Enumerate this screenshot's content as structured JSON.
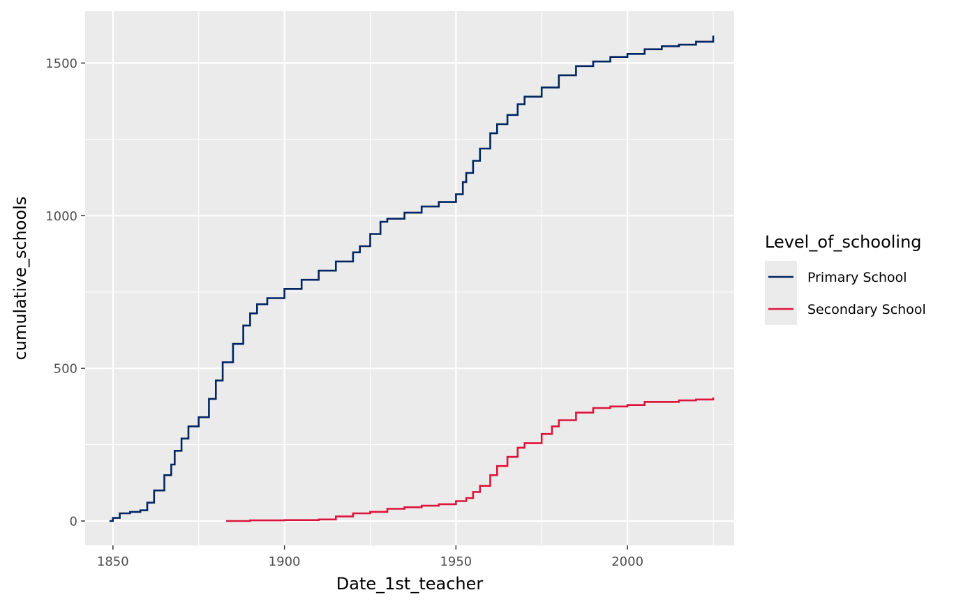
{
  "chart_data": {
    "type": "line",
    "title": "",
    "xlabel": "Date_1st_teacher",
    "ylabel": "cumulative_schools",
    "xlim": [
      1841.9,
      2031.1
    ],
    "ylim": [
      -80,
      1670
    ],
    "x_ticks": [
      1850,
      1900,
      1950,
      2000
    ],
    "x_tick_labels": [
      "1850",
      "1900",
      "1950",
      "2000"
    ],
    "y_ticks": [
      0,
      500,
      1000,
      1500
    ],
    "y_tick_labels": [
      "0",
      "500",
      "1000",
      "1500"
    ],
    "grid": true,
    "legend": {
      "title": "Level_of_schooling",
      "placement": "right"
    },
    "series": [
      {
        "name": "Primary School",
        "color": "#002561",
        "x": [
          1849,
          1850,
          1852,
          1855,
          1858,
          1860,
          1862,
          1865,
          1867,
          1868,
          1870,
          1872,
          1875,
          1878,
          1880,
          1882,
          1885,
          1888,
          1890,
          1892,
          1895,
          1900,
          1905,
          1910,
          1915,
          1920,
          1922,
          1925,
          1928,
          1930,
          1935,
          1940,
          1945,
          1950,
          1952,
          1953,
          1955,
          1957,
          1960,
          1962,
          1965,
          1968,
          1970,
          1975,
          1980,
          1985,
          1990,
          1995,
          2000,
          2005,
          2010,
          2015,
          2020,
          2025
        ],
        "y": [
          0,
          10,
          25,
          30,
          35,
          60,
          100,
          150,
          185,
          230,
          270,
          310,
          340,
          400,
          460,
          520,
          580,
          640,
          680,
          710,
          730,
          760,
          790,
          820,
          850,
          880,
          900,
          940,
          980,
          990,
          1010,
          1030,
          1045,
          1070,
          1110,
          1140,
          1180,
          1220,
          1270,
          1300,
          1330,
          1365,
          1390,
          1420,
          1460,
          1490,
          1505,
          1520,
          1530,
          1545,
          1555,
          1560,
          1570,
          1590
        ]
      },
      {
        "name": "Secondary School",
        "color": "#dc143c",
        "x": [
          1883,
          1890,
          1900,
          1905,
          1910,
          1915,
          1920,
          1925,
          1930,
          1935,
          1940,
          1945,
          1950,
          1953,
          1955,
          1957,
          1960,
          1962,
          1965,
          1968,
          1970,
          1975,
          1978,
          1980,
          1985,
          1990,
          1995,
          2000,
          2005,
          2010,
          2015,
          2020,
          2025
        ],
        "y": [
          0,
          2,
          3,
          3,
          5,
          15,
          25,
          30,
          40,
          45,
          50,
          55,
          65,
          75,
          95,
          115,
          150,
          180,
          210,
          240,
          255,
          285,
          310,
          330,
          355,
          370,
          375,
          380,
          390,
          390,
          395,
          398,
          405
        ]
      }
    ]
  }
}
